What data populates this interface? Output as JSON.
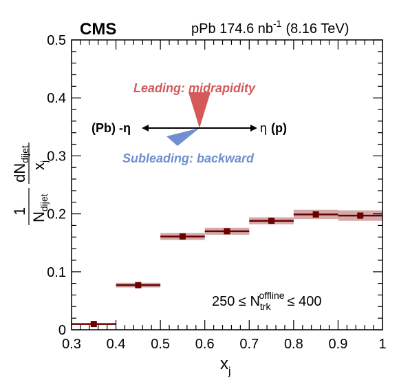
{
  "header": {
    "experiment": "CMS",
    "luminosity_prefix": "pPb 174.6 nb",
    "luminosity_exp": "-1",
    "energy": "(8.16 TeV)"
  },
  "annotations": {
    "leading": "Leading: midrapidity",
    "subleading": "Subleading: backward",
    "left_dir": "(Pb) -η",
    "right_dir_symbol": "η",
    "right_dir_label": "(p)",
    "cut_prefix": "250 ≤ N",
    "cut_sup": "offline",
    "cut_sub": "trk",
    "cut_suffix": "≤ 400"
  },
  "colors": {
    "marker": "#6b0000",
    "band": "#c48c8c",
    "leading": "#d45a5a",
    "subleading": "#6f8fd0"
  },
  "chart_data": {
    "type": "scatter",
    "xlabel": "x",
    "xlabel_sub": "j",
    "ylabel_numerator": "dN",
    "ylabel_numerator_sub": "dijet",
    "ylabel_denominator": "x",
    "ylabel_denominator_sub": "j",
    "ylabel_prefactor_num": "1",
    "ylabel_prefactor_den": "N",
    "ylabel_prefactor_den_sub": "dijet",
    "xlim": [
      0.3,
      1.0
    ],
    "ylim": [
      0.0,
      0.5
    ],
    "xticks": [
      "0.3",
      "0.4",
      "0.5",
      "0.6",
      "0.7",
      "0.8",
      "0.9",
      "1"
    ],
    "yticks": [
      "0",
      "0.1",
      "0.2",
      "0.3",
      "0.4",
      "0.5"
    ],
    "grid": false,
    "legend": "none",
    "series": [
      {
        "points": [
          {
            "x": 0.35,
            "xlow": 0.3,
            "xhigh": 0.4,
            "y": 0.01,
            "syst": 0.001
          },
          {
            "x": 0.45,
            "xlow": 0.4,
            "xhigh": 0.5,
            "y": 0.077,
            "syst": 0.004
          },
          {
            "x": 0.55,
            "xlow": 0.5,
            "xhigh": 0.6,
            "y": 0.161,
            "syst": 0.006
          },
          {
            "x": 0.65,
            "xlow": 0.6,
            "xhigh": 0.7,
            "y": 0.17,
            "syst": 0.006
          },
          {
            "x": 0.75,
            "xlow": 0.7,
            "xhigh": 0.8,
            "y": 0.188,
            "syst": 0.006
          },
          {
            "x": 0.85,
            "xlow": 0.8,
            "xhigh": 0.9,
            "y": 0.199,
            "syst": 0.008
          },
          {
            "x": 0.95,
            "xlow": 0.9,
            "xhigh": 1.0,
            "y": 0.197,
            "syst": 0.009
          }
        ]
      }
    ]
  }
}
